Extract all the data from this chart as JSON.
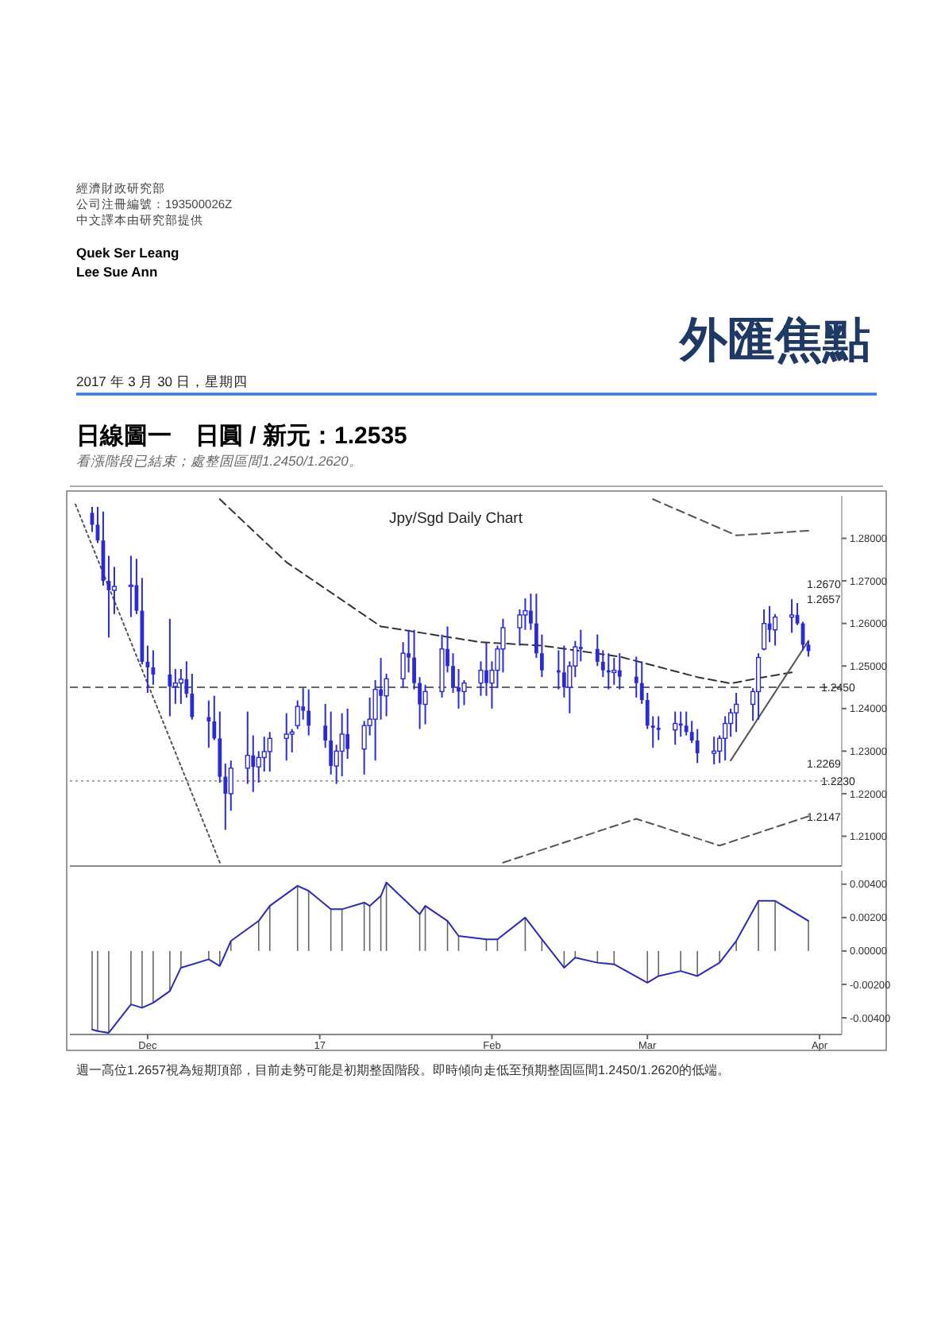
{
  "chart_data": [
    {
      "type": "candlestick",
      "title": "日線圖一　日圓 / 新元：1.2535",
      "subtitle": "看漲階段已結束；處整固區間1.2450/1.2620。",
      "annotations": [
        "經濟財政研究部",
        "公司注冊編號：193500026Z",
        "中文譯本由研究部提供",
        "Quek Ser Leang",
        "Lee Sue Ann",
        "外匯焦點",
        "2017 年 3 月 30 日，星期四",
        "Jpy/Sgd Daily Chart",
        "週一高位1.2657視為短期頂部，目前走勢可能是初期整固階段。即時傾向走低至預期整固區間1.2450/1.2620的低端。",
        "1.2670",
        "1.2657",
        "1.2269",
        "1.2147"
      ],
      "x": [
        "2016-11-21",
        "2016-11-22",
        "2016-11-23",
        "2016-11-24",
        "2016-11-25",
        "2016-11-28",
        "2016-11-29",
        "2016-11-30",
        "2016-12-01",
        "2016-12-02",
        "2016-12-05",
        "2016-12-06",
        "2016-12-07",
        "2016-12-08",
        "2016-12-09",
        "2016-12-12",
        "2016-12-13",
        "2016-12-14",
        "2016-12-15",
        "2016-12-16",
        "2016-12-19",
        "2016-12-20",
        "2016-12-21",
        "2016-12-22",
        "2016-12-23",
        "2016-12-26",
        "2016-12-27",
        "2016-12-28",
        "2016-12-29",
        "2016-12-30",
        "2017-01-02",
        "2017-01-03",
        "2017-01-04",
        "2017-01-05",
        "2017-01-06",
        "2017-01-09",
        "2017-01-10",
        "2017-01-11",
        "2017-01-12",
        "2017-01-13",
        "2017-01-16",
        "2017-01-17",
        "2017-01-18",
        "2017-01-19",
        "2017-01-20",
        "2017-01-23",
        "2017-01-24",
        "2017-01-25",
        "2017-01-26",
        "2017-01-27",
        "2017-01-30",
        "2017-01-31",
        "2017-02-01",
        "2017-02-02",
        "2017-02-03",
        "2017-02-06",
        "2017-02-07",
        "2017-02-08",
        "2017-02-09",
        "2017-02-10",
        "2017-02-13",
        "2017-02-14",
        "2017-02-15",
        "2017-02-16",
        "2017-02-17",
        "2017-02-20",
        "2017-02-21",
        "2017-02-22",
        "2017-02-23",
        "2017-02-24",
        "2017-02-27",
        "2017-02-28",
        "2017-03-01",
        "2017-03-02",
        "2017-03-03",
        "2017-03-06",
        "2017-03-07",
        "2017-03-08",
        "2017-03-09",
        "2017-03-10",
        "2017-03-13",
        "2017-03-14",
        "2017-03-15",
        "2017-03-16",
        "2017-03-17",
        "2017-03-20",
        "2017-03-21",
        "2017-03-22",
        "2017-03-23",
        "2017-03-24",
        "2017-03-27",
        "2017-03-28",
        "2017-03-29",
        "2017-03-30"
      ],
      "ohlc": [
        [
          1.286,
          1.2874,
          1.2815,
          1.2832
        ],
        [
          1.2832,
          1.2874,
          1.2789,
          1.2795
        ],
        [
          1.2795,
          1.2863,
          1.2689,
          1.27
        ],
        [
          1.27,
          1.2759,
          1.2567,
          1.2678
        ],
        [
          1.2678,
          1.2733,
          1.2622,
          1.2687
        ],
        [
          1.2687,
          1.2759,
          1.2615,
          1.269
        ],
        [
          1.269,
          1.2752,
          1.2622,
          1.263
        ],
        [
          1.263,
          1.2707,
          1.2504,
          1.251
        ],
        [
          1.251,
          1.2548,
          1.2437,
          1.2497
        ],
        [
          1.2497,
          1.2537,
          1.2456,
          1.248
        ],
        [
          1.248,
          1.2611,
          1.2382,
          1.2452
        ],
        [
          1.2452,
          1.2493,
          1.2411,
          1.246
        ],
        [
          1.246,
          1.2493,
          1.2411,
          1.2469
        ],
        [
          1.2469,
          1.2511,
          1.2426,
          1.2435
        ],
        [
          1.2435,
          1.2482,
          1.2374,
          1.238
        ],
        [
          1.238,
          1.2419,
          1.2308,
          1.237
        ],
        [
          1.237,
          1.243,
          1.2326,
          1.233
        ],
        [
          1.233,
          1.2393,
          1.2226,
          1.224
        ],
        [
          1.224,
          1.2271,
          1.2115,
          1.22
        ],
        [
          1.22,
          1.2278,
          1.216,
          1.226
        ],
        [
          1.226,
          1.2393,
          1.2223,
          1.229
        ],
        [
          1.229,
          1.2337,
          1.2204,
          1.2263
        ],
        [
          1.2263,
          1.23,
          1.2226,
          1.2285
        ],
        [
          1.2285,
          1.2334,
          1.2252,
          1.2299
        ],
        [
          1.2299,
          1.2345,
          1.2252,
          1.233
        ],
        [
          1.233,
          1.2389,
          1.2278,
          1.234
        ],
        [
          1.234,
          1.2352,
          1.2297,
          1.2345
        ],
        [
          1.236,
          1.2419,
          1.2352,
          1.2405
        ],
        [
          1.2405,
          1.2448,
          1.2374,
          1.2395
        ],
        [
          1.2395,
          1.2445,
          1.2337,
          1.236
        ],
        [
          1.236,
          1.2411,
          1.2308,
          1.2325
        ],
        [
          1.2325,
          1.2393,
          1.2245,
          1.2265
        ],
        [
          1.2265,
          1.2315,
          1.2223,
          1.23
        ],
        [
          1.23,
          1.2389,
          1.2241,
          1.234
        ],
        [
          1.234,
          1.24,
          1.2282,
          1.2305
        ],
        [
          1.2305,
          1.2371,
          1.2245,
          1.236
        ],
        [
          1.236,
          1.2426,
          1.2337,
          1.2375
        ],
        [
          1.2375,
          1.2467,
          1.2278,
          1.2445
        ],
        [
          1.2445,
          1.2519,
          1.2374,
          1.243
        ],
        [
          1.243,
          1.2482,
          1.2382,
          1.247
        ],
        [
          1.247,
          1.2556,
          1.2448,
          1.253
        ],
        [
          1.253,
          1.2585,
          1.2485,
          1.252
        ],
        [
          1.252,
          1.2585,
          1.2445,
          1.246
        ],
        [
          1.246,
          1.2474,
          1.2352,
          1.241
        ],
        [
          1.241,
          1.2456,
          1.2363,
          1.244
        ],
        [
          1.244,
          1.2574,
          1.2426,
          1.254
        ],
        [
          1.254,
          1.2593,
          1.2485,
          1.25
        ],
        [
          1.25,
          1.253,
          1.2437,
          1.245
        ],
        [
          1.245,
          1.2493,
          1.24,
          1.244
        ],
        [
          1.244,
          1.2467,
          1.2408,
          1.246
        ],
        [
          1.246,
          1.2511,
          1.243,
          1.249
        ],
        [
          1.249,
          1.2556,
          1.243,
          1.246
        ],
        [
          1.246,
          1.2511,
          1.24,
          1.249
        ],
        [
          1.249,
          1.2548,
          1.2448,
          1.254
        ],
        [
          1.254,
          1.2611,
          1.2485,
          1.259
        ],
        [
          1.259,
          1.2633,
          1.2548,
          1.262
        ],
        [
          1.262,
          1.2659,
          1.2585,
          1.263
        ],
        [
          1.263,
          1.267,
          1.2585,
          1.26
        ],
        [
          1.26,
          1.267,
          1.2519,
          1.253
        ],
        [
          1.253,
          1.2574,
          1.2474,
          1.249
        ],
        [
          1.249,
          1.2537,
          1.2445,
          1.2485
        ],
        [
          1.2485,
          1.2548,
          1.2426,
          1.245
        ],
        [
          1.245,
          1.2511,
          1.2389,
          1.25
        ],
        [
          1.25,
          1.2559,
          1.2474,
          1.2545
        ],
        [
          1.2545,
          1.2585,
          1.2511,
          1.254
        ],
        [
          1.254,
          1.2574,
          1.25,
          1.251
        ],
        [
          1.251,
          1.2537,
          1.2474,
          1.249
        ],
        [
          1.249,
          1.253,
          1.2445,
          1.2485
        ],
        [
          1.2485,
          1.2519,
          1.2456,
          1.249
        ],
        [
          1.249,
          1.253,
          1.2445,
          1.2475
        ],
        [
          1.2475,
          1.2522,
          1.2426,
          1.246
        ],
        [
          1.246,
          1.2511,
          1.2411,
          1.242
        ],
        [
          1.242,
          1.2437,
          1.2352,
          1.236
        ],
        [
          1.236,
          1.2382,
          1.2308,
          1.2355
        ],
        [
          1.2355,
          1.2382,
          1.2326,
          1.235
        ],
        [
          1.235,
          1.2393,
          1.2315,
          1.2365
        ],
        [
          1.2365,
          1.2393,
          1.2334,
          1.236
        ],
        [
          1.236,
          1.2393,
          1.2337,
          1.2345
        ],
        [
          1.2345,
          1.2371,
          1.2319,
          1.2325
        ],
        [
          1.2325,
          1.2352,
          1.2272,
          1.2295
        ],
        [
          1.2295,
          1.2334,
          1.2269,
          1.23
        ],
        [
          1.23,
          1.2337,
          1.2272,
          1.233
        ],
        [
          1.233,
          1.2382,
          1.2278,
          1.2365
        ],
        [
          1.2365,
          1.24,
          1.2334,
          1.239
        ],
        [
          1.239,
          1.2437,
          1.2345,
          1.241
        ],
        [
          1.241,
          1.2448,
          1.2371,
          1.244
        ],
        [
          1.244,
          1.253,
          1.2374,
          1.252
        ],
        [
          1.254,
          1.2633,
          1.2537,
          1.26
        ],
        [
          1.26,
          1.2641,
          1.2556,
          1.2585
        ],
        [
          1.2585,
          1.2622,
          1.2548,
          1.2615
        ],
        [
          1.2615,
          1.2657,
          1.2578,
          1.262
        ],
        [
          1.262,
          1.2648,
          1.2596,
          1.26
        ],
        [
          1.26,
          1.2604,
          1.2537,
          1.255
        ],
        [
          1.255,
          1.2559,
          1.2522,
          1.2535
        ]
      ],
      "color": "#2a2ad6",
      "series": [
        {
          "type": "line",
          "color": "#333333",
          "line_style": "dashed",
          "x": [
            "2016-12-14",
            "2016-12-26",
            "2017-01-12",
            "2017-01-30",
            "2017-02-10",
            "2017-02-24",
            "2017-03-10",
            "2017-03-16",
            "2017-03-22",
            "2017-03-27"
          ],
          "values": [
            1.2892,
            1.2744,
            1.2593,
            1.2556,
            1.2548,
            1.2522,
            1.2474,
            1.2459,
            1.2474,
            1.2485
          ]
        },
        {
          "type": "line",
          "color": "#555555",
          "line_style": "dotted",
          "x": [
            "2016-11-18",
            "2016-12-14"
          ],
          "values": [
            1.288,
            1.2038
          ]
        },
        {
          "type": "line",
          "color": "#555555",
          "line_style": "dashed",
          "x": [
            "2017-02-03",
            "2017-02-27",
            "2017-03-14",
            "2017-03-30"
          ],
          "values": [
            1.2038,
            1.2141,
            1.2078,
            1.2147
          ]
        },
        {
          "type": "line",
          "color": "#555555",
          "line_style": "dashed",
          "x": [
            "2017-03-02",
            "2017-03-17",
            "2017-03-30"
          ],
          "values": [
            1.2892,
            1.2807,
            1.2818
          ]
        },
        {
          "type": "line",
          "color": "#555555",
          "line_style": "solid",
          "x": [
            "2017-03-16",
            "2017-03-30"
          ],
          "values": [
            1.2278,
            1.2559
          ]
        }
      ],
      "ref_lines": [
        {
          "axis": "y",
          "value": 1.245,
          "label": "1.2450",
          "color": "#333333",
          "line_style": "dashed"
        },
        {
          "axis": "y",
          "value": 1.223,
          "label": "1.2230",
          "color": "#999999",
          "line_style": "dotted"
        }
      ],
      "xlim": [
        "2016-11-17",
        "2017-04-05"
      ],
      "ylim": [
        1.203,
        1.29
      ],
      "yticks": [
        {
          "value": 1.21,
          "label": "1.21000"
        },
        {
          "value": 1.22,
          "label": "1.22000"
        },
        {
          "value": 1.23,
          "label": "1.23000"
        },
        {
          "value": 1.24,
          "label": "1.24000"
        },
        {
          "value": 1.25,
          "label": "1.25000"
        },
        {
          "value": 1.26,
          "label": "1.26000"
        },
        {
          "value": 1.27,
          "label": "1.27000"
        },
        {
          "value": 1.28,
          "label": "1.28000"
        }
      ],
      "tick_labels": "y"
    },
    {
      "type": "line",
      "series": [
        {
          "type": "bar",
          "color": "#666666",
          "x": [
            "2016-11-21",
            "2016-11-22",
            "2016-11-24",
            "2016-11-28",
            "2016-11-30",
            "2016-12-02",
            "2016-12-05",
            "2016-12-07",
            "2016-12-12",
            "2016-12-14",
            "2016-12-16",
            "2016-12-21",
            "2016-12-23",
            "2016-12-28",
            "2016-12-30",
            "2017-01-03",
            "2017-01-05",
            "2017-01-09",
            "2017-01-10",
            "2017-01-12",
            "2017-01-13",
            "2017-01-19",
            "2017-01-20",
            "2017-01-24",
            "2017-01-26",
            "2017-01-31",
            "2017-02-02",
            "2017-02-07",
            "2017-02-10",
            "2017-02-14",
            "2017-02-16",
            "2017-02-20",
            "2017-02-23",
            "2017-03-01",
            "2017-03-03",
            "2017-03-07",
            "2017-03-10",
            "2017-03-14",
            "2017-03-17",
            "2017-03-21",
            "2017-03-24",
            "2017-03-30"
          ],
          "values": [
            -0.0047,
            -0.0048,
            -0.0049,
            -0.0032,
            -0.0034,
            -0.0031,
            -0.0024,
            -0.001,
            -0.0005,
            -0.0009,
            0.0006,
            0.0018,
            0.0027,
            0.0039,
            0.0036,
            0.0025,
            0.0025,
            0.0029,
            0.0027,
            0.0033,
            0.0041,
            0.0022,
            0.0027,
            0.0018,
            0.0009,
            0.0007,
            0.0007,
            0.002,
            0.0007,
            -0.001,
            -0.0004,
            -0.0007,
            -0.0008,
            -0.0019,
            -0.0015,
            -0.0012,
            -0.0015,
            -0.0007,
            0.0006,
            0.003,
            0.003,
            0.0018
          ]
        },
        {
          "type": "line",
          "color": "#2b2bb8",
          "x": [
            "2016-11-21",
            "2016-11-22",
            "2016-11-24",
            "2016-11-28",
            "2016-11-30",
            "2016-12-02",
            "2016-12-05",
            "2016-12-07",
            "2016-12-12",
            "2016-12-14",
            "2016-12-16",
            "2016-12-21",
            "2016-12-23",
            "2016-12-28",
            "2016-12-30",
            "2017-01-03",
            "2017-01-05",
            "2017-01-09",
            "2017-01-10",
            "2017-01-12",
            "2017-01-13",
            "2017-01-19",
            "2017-01-20",
            "2017-01-24",
            "2017-01-26",
            "2017-01-31",
            "2017-02-02",
            "2017-02-07",
            "2017-02-10",
            "2017-02-14",
            "2017-02-16",
            "2017-02-20",
            "2017-02-23",
            "2017-03-01",
            "2017-03-03",
            "2017-03-07",
            "2017-03-10",
            "2017-03-14",
            "2017-03-17",
            "2017-03-21",
            "2017-03-24",
            "2017-03-30"
          ],
          "values": [
            -0.0047,
            -0.0048,
            -0.0049,
            -0.0032,
            -0.0034,
            -0.0031,
            -0.0024,
            -0.001,
            -0.0005,
            -0.0009,
            0.0006,
            0.0018,
            0.0027,
            0.0039,
            0.0036,
            0.0025,
            0.0025,
            0.0029,
            0.0027,
            0.0033,
            0.0041,
            0.0022,
            0.0027,
            0.0018,
            0.0009,
            0.0007,
            0.0007,
            0.002,
            0.0007,
            -0.001,
            -0.0004,
            -0.0007,
            -0.0008,
            -0.0019,
            -0.0015,
            -0.0012,
            -0.0015,
            -0.0007,
            0.0006,
            0.003,
            0.003,
            0.0018
          ]
        }
      ],
      "xlim": [
        "2016-11-17",
        "2017-04-05"
      ],
      "xticks": [
        {
          "value": "2016-12-01",
          "label": "Dec"
        },
        {
          "value": "2017-01-01",
          "label": "17"
        },
        {
          "value": "2017-02-01",
          "label": "Feb"
        },
        {
          "value": "2017-03-01",
          "label": "Mar"
        },
        {
          "value": "2017-04-01",
          "label": "Apr"
        }
      ],
      "ylim": [
        -0.005,
        0.0048
      ],
      "yticks": [
        {
          "value": -0.004,
          "label": "-0.00400"
        },
        {
          "value": -0.002,
          "label": "-0.00200"
        },
        {
          "value": 0,
          "label": "0.00000"
        },
        {
          "value": 0.002,
          "label": "0.00200"
        },
        {
          "value": 0.004,
          "label": "0.00400"
        }
      ]
    }
  ]
}
